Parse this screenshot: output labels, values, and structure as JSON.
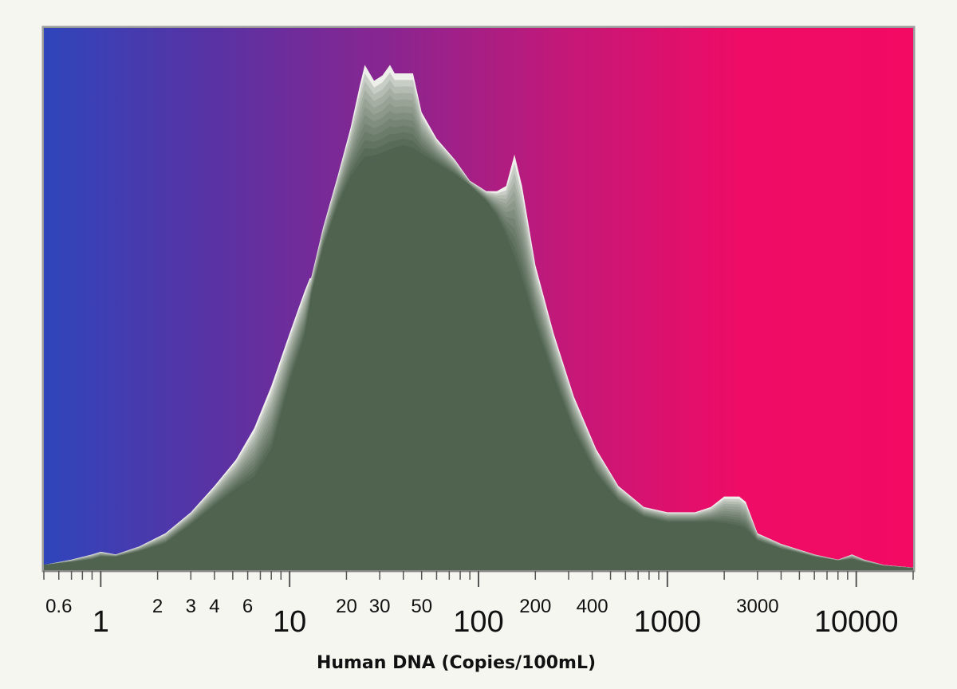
{
  "chart_data": {
    "type": "area",
    "title": "",
    "xlabel": "Human DNA (Copies/100mL)",
    "ylabel": "",
    "x_scale": "log",
    "xlim": [
      0.5,
      20000
    ],
    "ylim": [
      0,
      1
    ],
    "grid": false,
    "legend": "none",
    "background_gradient": [
      "#2f45bb",
      "#5a32a3",
      "#8a2590",
      "#c41878",
      "#ee0c66",
      "#f20a63"
    ],
    "fill_color": "#4f634f",
    "highlight_color": "#eeeeea",
    "x_ticks": [
      {
        "value": 0.6,
        "label": "0.6",
        "size": "small"
      },
      {
        "value": 1,
        "label": "1",
        "size": "large"
      },
      {
        "value": 2,
        "label": "2",
        "size": "small"
      },
      {
        "value": 3,
        "label": "3",
        "size": "small"
      },
      {
        "value": 4,
        "label": "4",
        "size": "small"
      },
      {
        "value": 6,
        "label": "6",
        "size": "small"
      },
      {
        "value": 10,
        "label": "10",
        "size": "large"
      },
      {
        "value": 20,
        "label": "20",
        "size": "small"
      },
      {
        "value": 30,
        "label": "30",
        "size": "small"
      },
      {
        "value": 50,
        "label": "50",
        "size": "small"
      },
      {
        "value": 100,
        "label": "100",
        "size": "large"
      },
      {
        "value": 200,
        "label": "200",
        "size": "small"
      },
      {
        "value": 400,
        "label": "400",
        "size": "small"
      },
      {
        "value": 1000,
        "label": "1000",
        "size": "large"
      },
      {
        "value": 3000,
        "label": "3000",
        "size": "small"
      },
      {
        "value": 10000,
        "label": "10000",
        "size": "large"
      }
    ],
    "outer_series": {
      "x": [
        0.5,
        0.7,
        0.9,
        1.0,
        1.2,
        1.6,
        2.2,
        3.0,
        4.0,
        5.2,
        6.5,
        8.0,
        10.0,
        12.0,
        12.8,
        13.0,
        15.0,
        18.0,
        21.0,
        23.5,
        25.0,
        28.0,
        31.0,
        34.0,
        36.0,
        40.0,
        45.0,
        50.0,
        60.0,
        75.0,
        90.0,
        110.0,
        125.0,
        140.0,
        155.0,
        170.0,
        200.0,
        250.0,
        320.0,
        420.0,
        550.0,
        750.0,
        1000.0,
        1400.0,
        1700.0,
        2000.0,
        2400.0,
        2600.0,
        3000.0,
        4000.0,
        6000.0,
        8000.0,
        9500.0,
        11000.0,
        14000.0,
        20000.0
      ],
      "y": [
        0.01,
        0.02,
        0.03,
        0.035,
        0.03,
        0.045,
        0.07,
        0.11,
        0.16,
        0.21,
        0.27,
        0.35,
        0.45,
        0.53,
        0.555,
        0.555,
        0.65,
        0.75,
        0.84,
        0.92,
        0.96,
        0.93,
        0.94,
        0.96,
        0.944,
        0.944,
        0.944,
        0.87,
        0.82,
        0.78,
        0.74,
        0.72,
        0.72,
        0.73,
        0.79,
        0.73,
        0.58,
        0.45,
        0.33,
        0.23,
        0.16,
        0.12,
        0.11,
        0.11,
        0.12,
        0.14,
        0.14,
        0.13,
        0.07,
        0.05,
        0.03,
        0.02,
        0.03,
        0.02,
        0.01,
        0.005
      ],
      "y_inner": [
        0.01,
        0.015,
        0.02,
        0.025,
        0.025,
        0.035,
        0.05,
        0.085,
        0.12,
        0.15,
        0.17,
        0.22,
        0.35,
        0.44,
        0.5,
        0.52,
        0.61,
        0.69,
        0.74,
        0.76,
        0.77,
        0.775,
        0.78,
        0.785,
        0.79,
        0.795,
        0.79,
        0.785,
        0.77,
        0.75,
        0.73,
        0.7,
        0.67,
        0.63,
        0.58,
        0.54,
        0.46,
        0.36,
        0.26,
        0.18,
        0.13,
        0.1,
        0.09,
        0.09,
        0.09,
        0.085,
        0.08,
        0.075,
        0.055,
        0.04,
        0.025,
        0.018,
        0.02,
        0.015,
        0.008,
        0.004
      ]
    }
  }
}
